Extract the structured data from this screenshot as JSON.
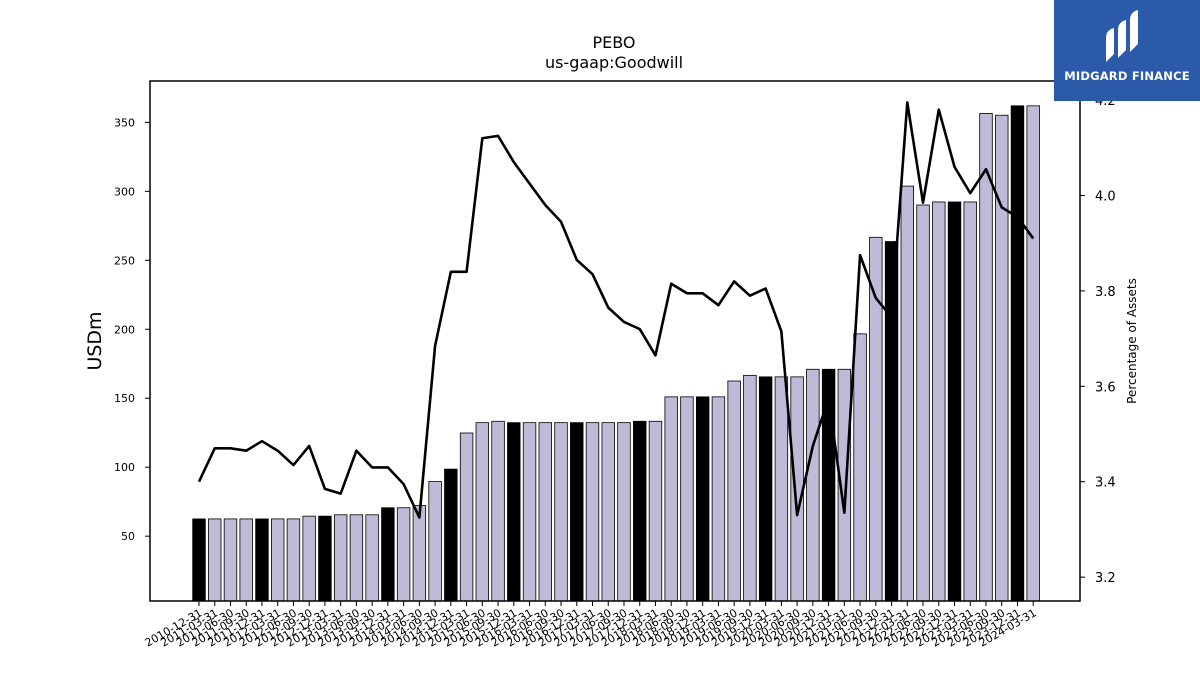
{
  "brand": {
    "name": "MIDGARD FINANCE",
    "color": "#2b5aa8"
  },
  "chart_data": {
    "type": "bar",
    "title": "PEBO",
    "subtitle": "us-gaap:Goodwill",
    "ylabel": "USDm",
    "y2label": "Percentage of Assets",
    "ylim": [
      3,
      380
    ],
    "y2lim": [
      3.15,
      4.24
    ],
    "yticks": [
      50,
      100,
      150,
      200,
      250,
      300,
      350
    ],
    "y2ticks": [
      3.2,
      3.4,
      3.6,
      3.8,
      4.0,
      4.2
    ],
    "grid": false,
    "legend": "none",
    "colors": {
      "bar": "#bebad8",
      "bar_highlight": "#000000",
      "line": "#000000"
    },
    "categories": [
      "2010-12-31",
      "2011-03-31",
      "2011-06-30",
      "2011-09-30",
      "2011-12-31",
      "2012-03-31",
      "2012-06-30",
      "2012-09-30",
      "2012-12-31",
      "2013-03-31",
      "2013-06-30",
      "2013-09-30",
      "2013-12-31",
      "2014-03-31",
      "2014-06-30",
      "2014-09-30",
      "2014-12-31",
      "2015-03-31",
      "2015-06-30",
      "2015-09-30",
      "2015-12-31",
      "2016-03-31",
      "2016-06-30",
      "2016-09-30",
      "2016-12-31",
      "2017-03-31",
      "2017-06-30",
      "2017-09-30",
      "2017-12-31",
      "2018-03-31",
      "2018-06-30",
      "2018-09-30",
      "2018-12-31",
      "2019-03-31",
      "2019-06-30",
      "2019-09-30",
      "2019-12-31",
      "2020-03-31",
      "2020-06-30",
      "2020-09-30",
      "2020-12-31",
      "2021-03-31",
      "2021-06-30",
      "2021-09-30",
      "2021-12-31",
      "2022-03-31",
      "2022-06-30",
      "2022-09-30",
      "2022-12-31",
      "2023-03-31",
      "2023-06-30",
      "2023-09-30",
      "2023-12-31",
      "2024-03-31"
    ],
    "bar_values": [
      62.5,
      62.5,
      62.5,
      62.5,
      62.5,
      62.5,
      62.5,
      64.5,
      64.5,
      65.5,
      65.5,
      65.5,
      70.6,
      70.6,
      72.2,
      89.6,
      98.6,
      124.8,
      132.3,
      133.3,
      132.3,
      132.3,
      132.3,
      132.3,
      132.3,
      132.3,
      132.3,
      132.3,
      133.3,
      133.3,
      151.0,
      151.0,
      151.0,
      151.0,
      162.5,
      166.6,
      165.5,
      165.5,
      165.5,
      171.0,
      171.0,
      171.0,
      196.7,
      266.7,
      263.6,
      303.8,
      290.1,
      292.3,
      292.3,
      292.3,
      356.5,
      355.2,
      362.0,
      362.0
    ],
    "highlight_indices": [
      0,
      4,
      8,
      12,
      16,
      20,
      24,
      28,
      32,
      36,
      40,
      44,
      48,
      52
    ],
    "line_values": [
      3.4,
      3.47,
      3.47,
      3.465,
      3.485,
      3.465,
      3.435,
      3.475,
      3.385,
      3.375,
      3.465,
      3.43,
      3.43,
      3.395,
      3.325,
      3.685,
      3.84,
      3.84,
      4.12,
      4.125,
      4.07,
      4.025,
      3.98,
      3.945,
      3.865,
      3.835,
      3.765,
      3.735,
      3.72,
      3.665,
      3.815,
      3.795,
      3.795,
      3.77,
      3.82,
      3.79,
      3.805,
      3.715,
      3.33,
      3.475,
      3.575,
      3.335,
      3.875,
      3.785,
      3.745,
      4.195,
      3.985,
      4.18,
      4.06,
      4.005,
      4.055,
      3.975,
      3.955,
      3.91
    ]
  }
}
